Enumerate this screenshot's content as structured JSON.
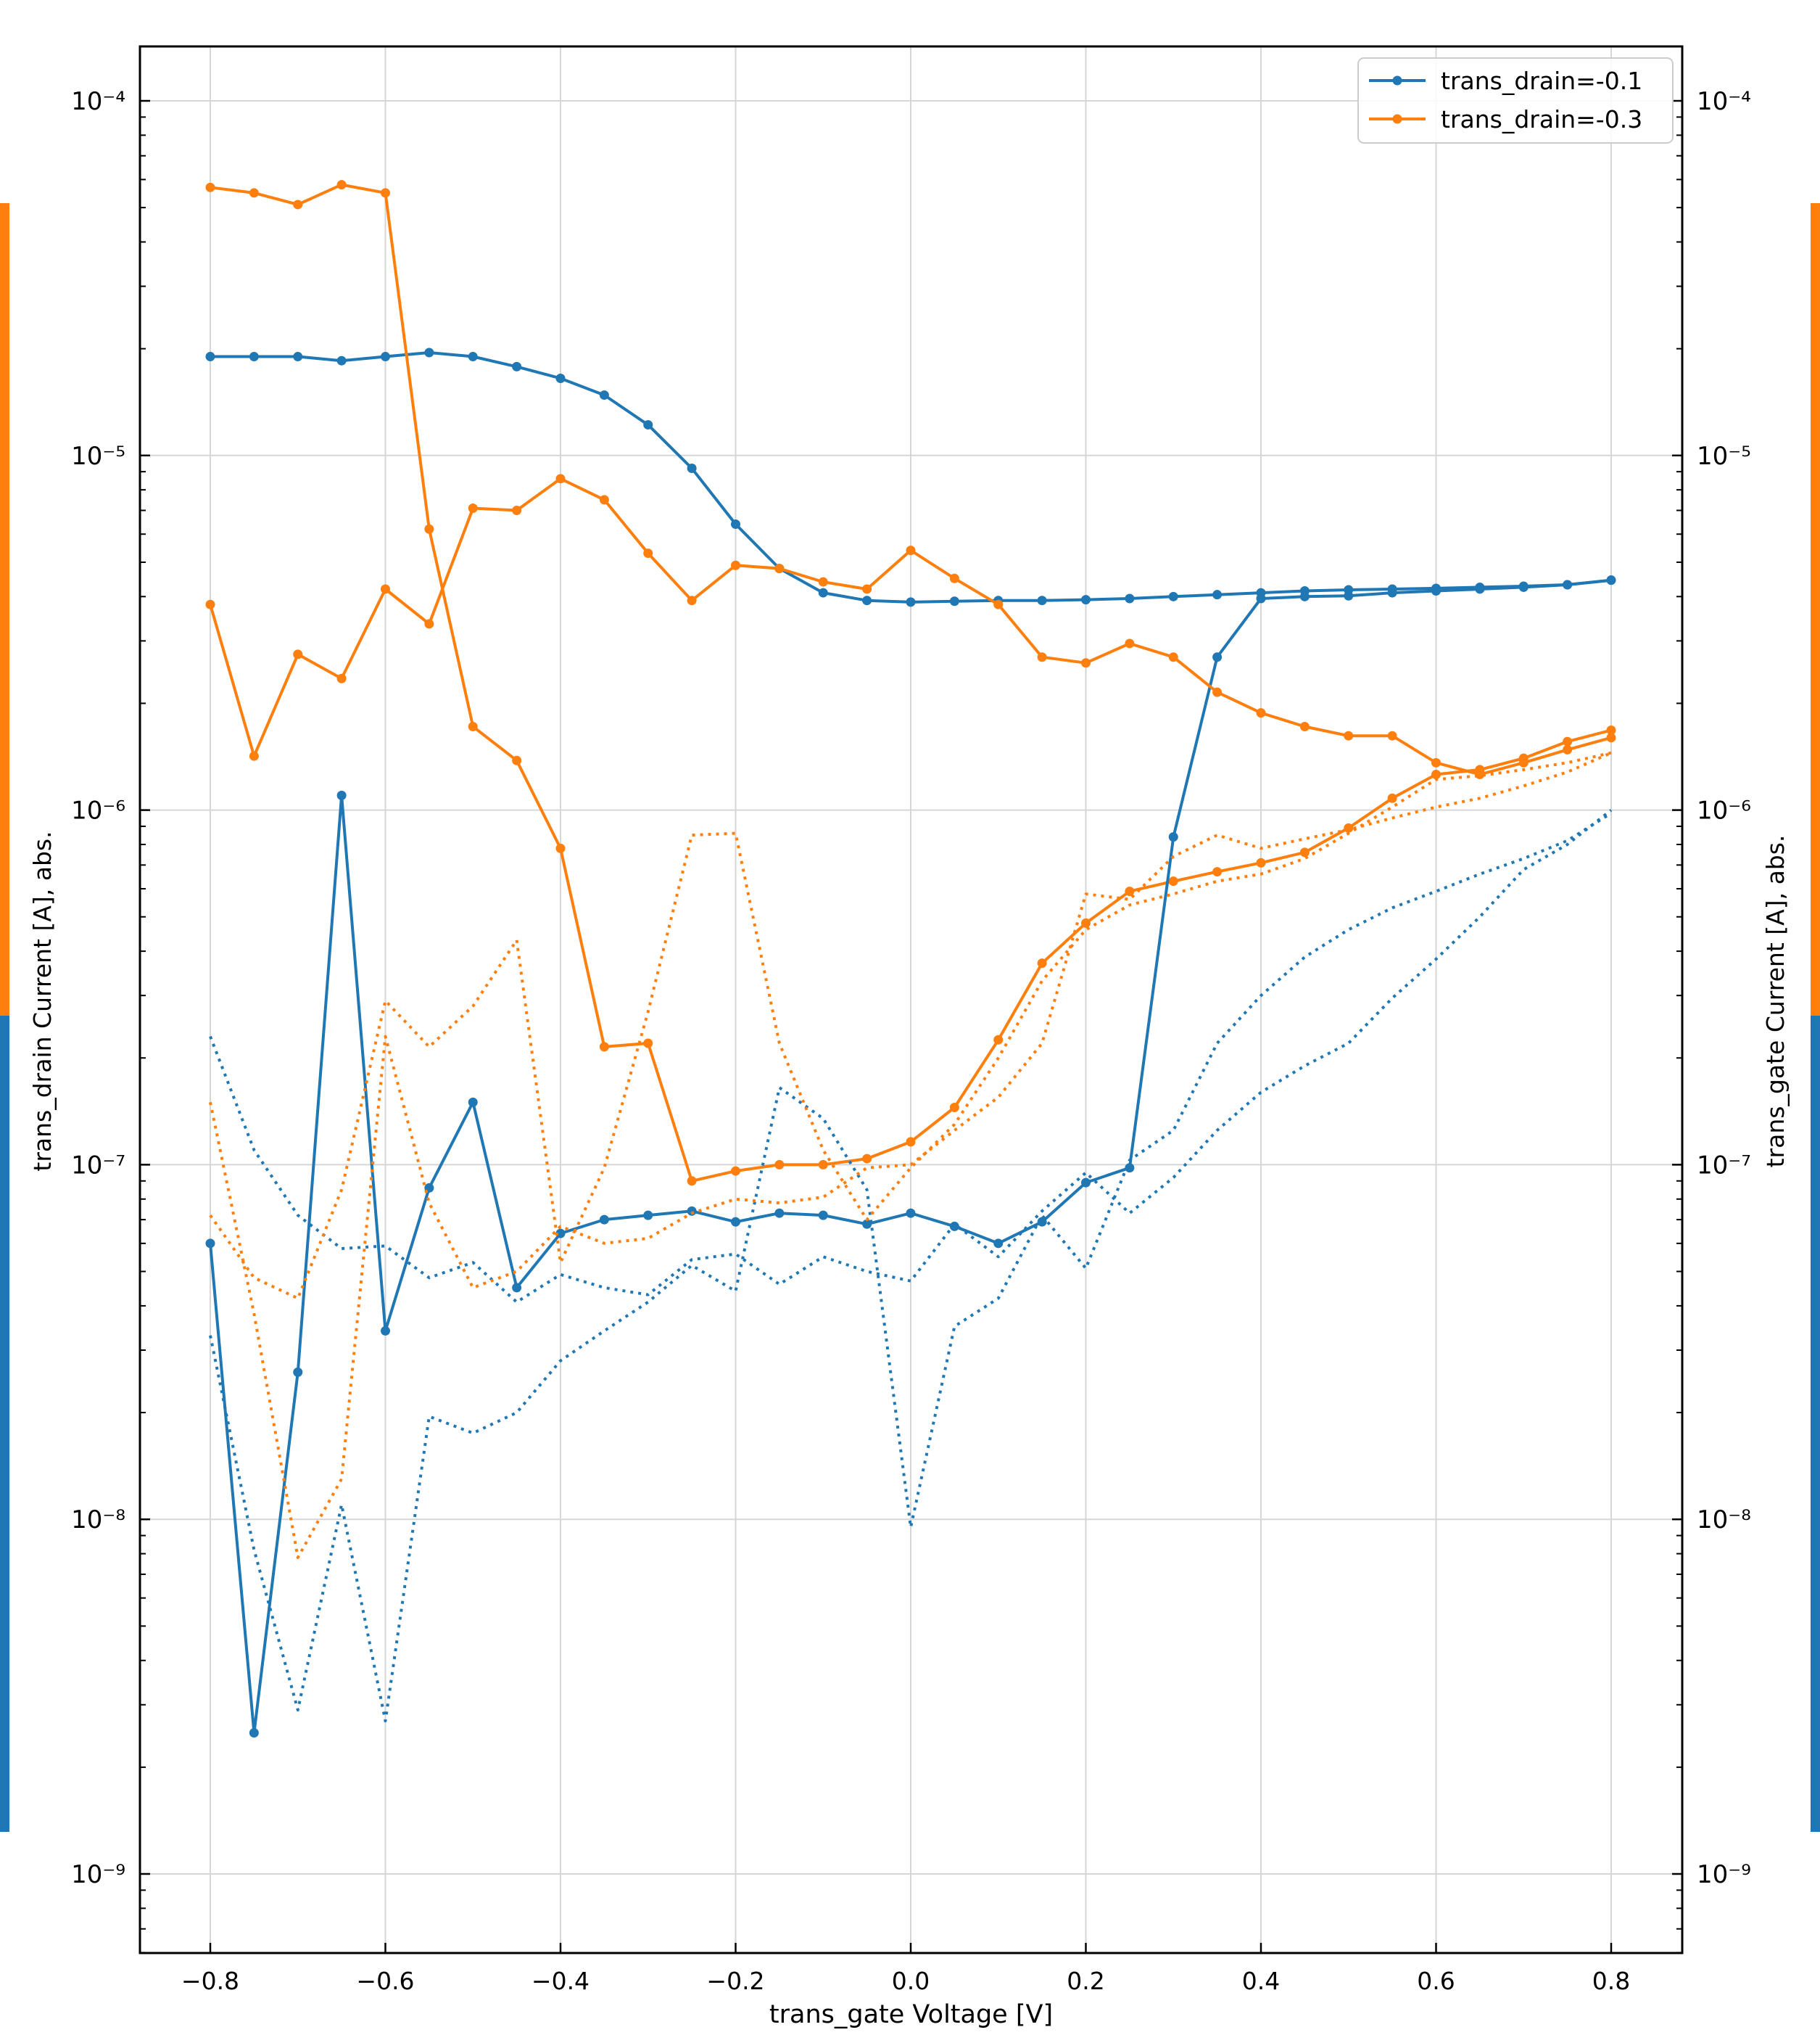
{
  "chart_data": {
    "type": "line",
    "xlabel": "trans_gate Voltage [V]",
    "ylabel_left": "trans_drain Current [A], abs.",
    "ylabel_right": "trans_gate Current [A], abs.",
    "xlim": [
      -0.88,
      0.88
    ],
    "ylim": [
      6e-10,
      0.000145
    ],
    "yscale": "log",
    "grid": true,
    "legend_position": "top-right",
    "x_ticks": [
      -0.8,
      -0.6,
      -0.4,
      -0.2,
      0.0,
      0.2,
      0.4,
      0.6,
      0.8
    ],
    "x_tick_labels": [
      "−0.8",
      "−0.6",
      "−0.4",
      "−0.2",
      "0.0",
      "0.2",
      "0.4",
      "0.6",
      "0.8"
    ],
    "y_ticks": [
      1e-09,
      1e-08,
      1e-07,
      1e-06,
      1e-05,
      0.0001
    ],
    "y_tick_labels": [
      "10⁻⁹",
      "10⁻⁸",
      "10⁻⁷",
      "10⁻⁶",
      "10⁻⁵",
      "10⁻⁴"
    ],
    "colors": {
      "blue": "#1f77b4",
      "orange": "#ff7f0e"
    },
    "series": [
      {
        "name": "trans_drain=-0.1",
        "color": "#1f77b4",
        "style": "solid-markers",
        "in_legend": true,
        "x": [
          -0.8,
          -0.75,
          -0.7,
          -0.65,
          -0.6,
          -0.55,
          -0.5,
          -0.45,
          -0.4,
          -0.35,
          -0.3,
          -0.25,
          -0.2,
          -0.15,
          -0.1,
          -0.05,
          0.0,
          0.05,
          0.1,
          0.15,
          0.2,
          0.25,
          0.3,
          0.35,
          0.4,
          0.45,
          0.5,
          0.55,
          0.6,
          0.65,
          0.7,
          0.75,
          0.8
        ],
        "y": [
          1.9e-05,
          1.9e-05,
          1.9e-05,
          1.85e-05,
          1.9e-05,
          1.95e-05,
          1.9e-05,
          1.78e-05,
          1.65e-05,
          1.48e-05,
          1.22e-05,
          9.2e-06,
          6.4e-06,
          4.8e-06,
          4.1e-06,
          3.9e-06,
          3.86e-06,
          3.88e-06,
          3.9e-06,
          3.9e-06,
          3.92e-06,
          3.95e-06,
          4e-06,
          4.05e-06,
          4.1e-06,
          4.15e-06,
          4.18e-06,
          4.2e-06,
          4.22e-06,
          4.25e-06,
          4.28e-06,
          4.32e-06,
          4.45e-06
        ]
      },
      {
        "name": "trans_drain=-0.3",
        "color": "#ff7f0e",
        "style": "solid-markers",
        "in_legend": true,
        "x": [
          -0.8,
          -0.75,
          -0.7,
          -0.65,
          -0.6,
          -0.55,
          -0.5,
          -0.45,
          -0.4,
          -0.35,
          -0.3,
          -0.25,
          -0.2,
          -0.15,
          -0.1,
          -0.05,
          0.0,
          0.05,
          0.1,
          0.15,
          0.2,
          0.25,
          0.3,
          0.35,
          0.4,
          0.45,
          0.5,
          0.55,
          0.6,
          0.65,
          0.7,
          0.75,
          0.8
        ],
        "y": [
          5.7e-05,
          5.5e-05,
          5.1e-05,
          5.8e-05,
          5.5e-05,
          6.2e-06,
          1.72e-06,
          1.38e-06,
          7.8e-07,
          2.15e-07,
          2.2e-07,
          9e-08,
          9.6e-08,
          1e-07,
          1e-07,
          1.04e-07,
          1.16e-07,
          1.45e-07,
          2.25e-07,
          3.7e-07,
          4.8e-07,
          5.9e-07,
          6.3e-07,
          6.7e-07,
          7.1e-07,
          7.6e-07,
          8.9e-07,
          1.08e-06,
          1.26e-06,
          1.3e-06,
          1.4e-06,
          1.56e-06,
          1.68e-06
        ]
      },
      {
        "name": "",
        "color": "#1f77b4",
        "style": "solid-markers",
        "in_legend": false,
        "x": [
          -0.8,
          -0.75,
          -0.7,
          -0.65,
          -0.6,
          -0.55,
          -0.5,
          -0.45,
          -0.4,
          -0.35,
          -0.3,
          -0.25,
          -0.2,
          -0.15,
          -0.1,
          -0.05,
          0.0,
          0.05,
          0.1,
          0.15,
          0.2,
          0.25,
          0.3,
          0.35,
          0.4,
          0.45,
          0.5,
          0.55,
          0.6,
          0.65,
          0.7,
          0.75,
          0.8
        ],
        "y": [
          6e-08,
          2.5e-09,
          2.6e-08,
          1.1e-06,
          3.4e-08,
          8.6e-08,
          1.5e-07,
          4.5e-08,
          6.4e-08,
          7e-08,
          7.2e-08,
          7.4e-08,
          6.9e-08,
          7.3e-08,
          7.2e-08,
          6.8e-08,
          7.3e-08,
          6.7e-08,
          6e-08,
          6.9e-08,
          8.9e-08,
          9.8e-08,
          8.4e-07,
          2.7e-06,
          3.95e-06,
          4e-06,
          4.02e-06,
          4.1e-06,
          4.15e-06,
          4.2e-06,
          4.25e-06,
          4.32e-06,
          4.45e-06
        ]
      },
      {
        "name": "",
        "color": "#ff7f0e",
        "style": "solid-markers",
        "in_legend": false,
        "x": [
          -0.8,
          -0.75,
          -0.7,
          -0.65,
          -0.6,
          -0.55,
          -0.5,
          -0.45,
          -0.4,
          -0.35,
          -0.3,
          -0.25,
          -0.2,
          -0.15,
          -0.1,
          -0.05,
          0.0,
          0.05,
          0.1,
          0.15,
          0.2,
          0.25,
          0.3,
          0.35,
          0.4,
          0.45,
          0.5,
          0.55,
          0.6,
          0.65,
          0.7,
          0.75,
          0.8
        ],
        "y": [
          3.8e-06,
          1.42e-06,
          2.75e-06,
          2.35e-06,
          4.2e-06,
          3.35e-06,
          7.1e-06,
          7e-06,
          8.6e-06,
          7.5e-06,
          5.3e-06,
          3.9e-06,
          4.9e-06,
          4.8e-06,
          4.4e-06,
          4.2e-06,
          5.4e-06,
          4.5e-06,
          3.8e-06,
          2.7e-06,
          2.6e-06,
          2.95e-06,
          2.7e-06,
          2.15e-06,
          1.88e-06,
          1.72e-06,
          1.62e-06,
          1.62e-06,
          1.36e-06,
          1.26e-06,
          1.36e-06,
          1.48e-06,
          1.6e-06
        ]
      },
      {
        "name": "",
        "color": "#1f77b4",
        "style": "dotted",
        "in_legend": false,
        "x": [
          -0.8,
          -0.75,
          -0.7,
          -0.65,
          -0.6,
          -0.55,
          -0.5,
          -0.45,
          -0.4,
          -0.35,
          -0.3,
          -0.25,
          -0.2,
          -0.15,
          -0.1,
          -0.05,
          0.0,
          0.05,
          0.1,
          0.15,
          0.2,
          0.25,
          0.3,
          0.35,
          0.4,
          0.45,
          0.5,
          0.55,
          0.6,
          0.65,
          0.7,
          0.75,
          0.8
        ],
        "y": [
          2.3e-07,
          1.1e-07,
          7.2e-08,
          5.8e-08,
          5.9e-08,
          4.8e-08,
          5.3e-08,
          4.1e-08,
          4.9e-08,
          4.5e-08,
          4.3e-08,
          5.4e-08,
          5.6e-08,
          4.6e-08,
          5.5e-08,
          5e-08,
          4.7e-08,
          6.8e-08,
          5.5e-08,
          7.4e-08,
          9.5e-08,
          7.3e-08,
          9.2e-08,
          1.25e-07,
          1.6e-07,
          1.9e-07,
          2.2e-07,
          2.95e-07,
          3.8e-07,
          5e-07,
          6.8e-07,
          8e-07,
          1e-06
        ]
      },
      {
        "name": "",
        "color": "#1f77b4",
        "style": "dotted",
        "in_legend": false,
        "x": [
          -0.8,
          -0.75,
          -0.7,
          -0.65,
          -0.6,
          -0.55,
          -0.5,
          -0.45,
          -0.4,
          -0.35,
          -0.3,
          -0.25,
          -0.2,
          -0.15,
          -0.1,
          -0.05,
          0.0,
          0.05,
          0.1,
          0.15,
          0.2,
          0.25,
          0.3,
          0.35,
          0.4,
          0.45,
          0.5,
          0.55,
          0.6,
          0.65,
          0.7,
          0.75,
          0.8
        ],
        "y": [
          3.3e-08,
          8.2e-09,
          2.9e-09,
          1.1e-08,
          2.7e-09,
          1.95e-08,
          1.75e-08,
          2e-08,
          2.8e-08,
          3.4e-08,
          4.1e-08,
          5.2e-08,
          4.4e-08,
          1.65e-07,
          1.35e-07,
          8.5e-08,
          9.5e-09,
          3.5e-08,
          4.2e-08,
          7.2e-08,
          5.1e-08,
          1.03e-07,
          1.25e-07,
          2.2e-07,
          3e-07,
          3.85e-07,
          4.6e-07,
          5.3e-07,
          5.9e-07,
          6.6e-07,
          7.3e-07,
          8.2e-07,
          9.8e-07
        ]
      },
      {
        "name": "",
        "color": "#ff7f0e",
        "style": "dotted",
        "in_legend": false,
        "x": [
          -0.8,
          -0.75,
          -0.7,
          -0.65,
          -0.6,
          -0.55,
          -0.5,
          -0.45,
          -0.4,
          -0.35,
          -0.3,
          -0.25,
          -0.2,
          -0.15,
          -0.1,
          -0.05,
          0.0,
          0.05,
          0.1,
          0.15,
          0.2,
          0.25,
          0.3,
          0.35,
          0.4,
          0.45,
          0.5,
          0.55,
          0.6,
          0.65,
          0.7,
          0.75,
          0.8
        ],
        "y": [
          1.5e-07,
          3.8e-08,
          7.8e-09,
          1.3e-08,
          2.3e-07,
          7.8e-08,
          4.5e-08,
          5e-08,
          6.7e-08,
          6e-08,
          6.2e-08,
          7.3e-08,
          8e-08,
          7.8e-08,
          8.1e-08,
          9.8e-08,
          1e-07,
          1.25e-07,
          1.55e-07,
          2.2e-07,
          5.8e-07,
          5.6e-07,
          7.4e-07,
          8.5e-07,
          7.8e-07,
          8.3e-07,
          8.8e-07,
          9.5e-07,
          1.02e-06,
          1.08e-06,
          1.17e-06,
          1.28e-06,
          1.45e-06
        ]
      },
      {
        "name": "",
        "color": "#ff7f0e",
        "style": "dotted",
        "in_legend": false,
        "x": [
          -0.8,
          -0.75,
          -0.7,
          -0.65,
          -0.6,
          -0.55,
          -0.5,
          -0.45,
          -0.4,
          -0.35,
          -0.3,
          -0.25,
          -0.2,
          -0.15,
          -0.1,
          -0.05,
          0.0,
          0.05,
          0.1,
          0.15,
          0.2,
          0.25,
          0.3,
          0.35,
          0.4,
          0.45,
          0.5,
          0.55,
          0.6,
          0.65,
          0.7,
          0.75,
          0.8
        ],
        "y": [
          7.2e-08,
          4.8e-08,
          4.2e-08,
          8.5e-08,
          2.9e-07,
          2.15e-07,
          2.8e-07,
          4.3e-07,
          5.3e-08,
          9.8e-08,
          2.7e-07,
          8.5e-07,
          8.6e-07,
          2.2e-07,
          1.1e-07,
          7e-08,
          9.8e-08,
          1.3e-07,
          2e-07,
          3.3e-07,
          4.6e-07,
          5.4e-07,
          5.8e-07,
          6.3e-07,
          6.6e-07,
          7.3e-07,
          8.6e-07,
          1.02e-06,
          1.22e-06,
          1.25e-06,
          1.3e-06,
          1.36e-06,
          1.45e-06
        ]
      }
    ]
  }
}
